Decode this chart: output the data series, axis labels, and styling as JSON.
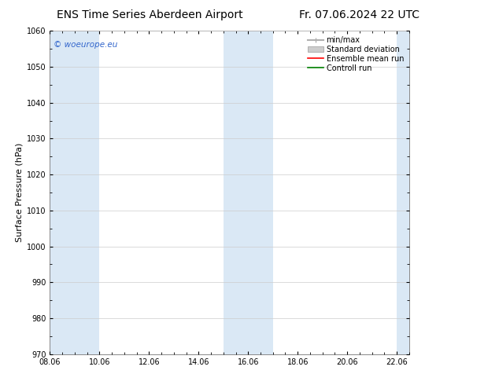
{
  "title_left": "ENS Time Series Aberdeen Airport",
  "title_right": "Fr. 07.06.2024 22 UTC",
  "ylabel": "Surface Pressure (hPa)",
  "ylim": [
    970,
    1060
  ],
  "yticks": [
    970,
    980,
    990,
    1000,
    1010,
    1020,
    1030,
    1040,
    1050,
    1060
  ],
  "xlim_start": 0.0,
  "xlim_end": 14.5,
  "xtick_labels": [
    "08.06",
    "10.06",
    "12.06",
    "14.06",
    "16.06",
    "18.06",
    "20.06",
    "22.06"
  ],
  "xtick_positions": [
    0,
    2,
    4,
    6,
    8,
    10,
    12,
    14
  ],
  "shaded_color": "#dae8f5",
  "watermark_text": "© woeurope.eu",
  "watermark_color": "#3366cc",
  "legend_items": [
    {
      "label": "min/max",
      "color": "#b0b0b0",
      "type": "minmax"
    },
    {
      "label": "Standard deviation",
      "color": "#cccccc",
      "type": "fill"
    },
    {
      "label": "Ensemble mean run",
      "color": "#ff0000",
      "type": "line"
    },
    {
      "label": "Controll run",
      "color": "#008000",
      "type": "line"
    }
  ],
  "bg_color": "#ffffff",
  "plot_bg_color": "#ffffff",
  "title_fontsize": 10,
  "tick_fontsize": 7,
  "ylabel_fontsize": 8,
  "legend_fontsize": 7
}
